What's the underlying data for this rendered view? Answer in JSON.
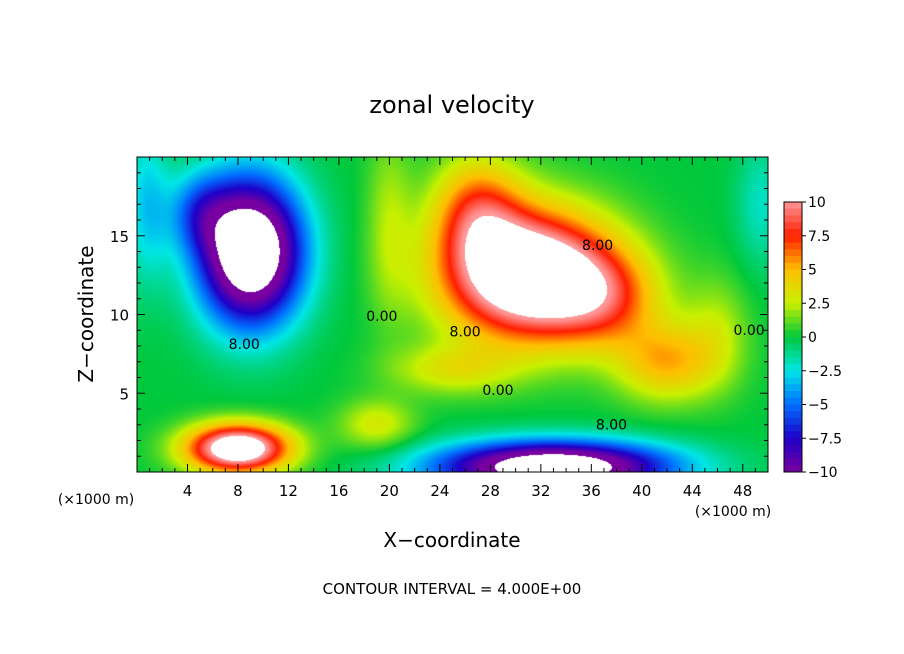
{
  "chart_data": {
    "type": "heatmap",
    "title": "zonal velocity",
    "xlabel": "X−coordinate",
    "ylabel": "Z−coordinate",
    "x_unit_left": "(×1000 m)",
    "x_unit_right": "(×1000 m)",
    "x_range": [
      0,
      50
    ],
    "y_range": [
      0,
      20
    ],
    "x_ticks": [
      4,
      8,
      12,
      16,
      20,
      24,
      28,
      32,
      36,
      40,
      44,
      48
    ],
    "x_tick_labels": [
      "4",
      "8",
      "12",
      "16",
      "20",
      "24",
      "28",
      "32",
      "36",
      "40",
      "44",
      "48"
    ],
    "y_ticks": [
      5,
      10,
      15
    ],
    "y_tick_labels": [
      "5",
      "10",
      "15"
    ],
    "color_range": [
      -10,
      10
    ],
    "colorbar_ticks": [
      10,
      7.5,
      5,
      2.5,
      0,
      -2.5,
      -5,
      -7.5,
      -10
    ],
    "colorbar_tick_labels": [
      "10",
      "7.5",
      "5",
      "2.5",
      "0",
      "−2.5",
      "−5",
      "−7.5",
      "−10"
    ],
    "contour_labels": [
      {
        "text": "8.00",
        "x": 36.5,
        "y": 14.1
      },
      {
        "text": "0.00",
        "x": 19.4,
        "y": 9.6
      },
      {
        "text": "8.00",
        "x": 26.0,
        "y": 8.6
      },
      {
        "text": "8.00",
        "x": 8.5,
        "y": 7.8
      },
      {
        "text": "0.00",
        "x": 48.5,
        "y": 8.7
      },
      {
        "text": "0.00",
        "x": 28.6,
        "y": 4.9
      },
      {
        "text": "8.00",
        "x": 37.6,
        "y": 2.7
      }
    ],
    "footer": "CONTOUR INTERVAL = 4.000E+00",
    "features": [
      {
        "x": 9.0,
        "y": 14.0,
        "sx": 4.0,
        "sy": 4.5,
        "value": -16
      },
      {
        "x": 5.0,
        "y": 16.5,
        "sx": 2.5,
        "sy": 2.5,
        "value": -4
      },
      {
        "x": 31.0,
        "y": 12.5,
        "sx": 6.5,
        "sy": 4.0,
        "value": 15
      },
      {
        "x": 37.0,
        "y": 11.0,
        "sx": 4.5,
        "sy": 3.0,
        "value": 5
      },
      {
        "x": 27.0,
        "y": 16.5,
        "sx": 3.5,
        "sy": 3.5,
        "value": 6
      },
      {
        "x": 42.0,
        "y": 7.0,
        "sx": 4.0,
        "sy": 2.5,
        "value": 5
      },
      {
        "x": 46.0,
        "y": 9.0,
        "sx": 2.5,
        "sy": 3.5,
        "value": 2
      },
      {
        "x": 8.0,
        "y": 1.5,
        "sx": 4.0,
        "sy": 1.5,
        "value": 14
      },
      {
        "x": 33.0,
        "y": 0.3,
        "sx": 9.0,
        "sy": 1.6,
        "value": -15
      },
      {
        "x": 19.0,
        "y": 3.0,
        "sx": 3.0,
        "sy": 1.6,
        "value": 3
      },
      {
        "x": 0.8,
        "y": 17.0,
        "sx": 1.8,
        "sy": 5.0,
        "value": -3
      },
      {
        "x": 49.5,
        "y": 17.0,
        "sx": 2.0,
        "sy": 4.0,
        "value": -2
      },
      {
        "x": 25.0,
        "y": 6.5,
        "sx": 5.0,
        "sy": 1.6,
        "value": 3
      },
      {
        "x": 20.0,
        "y": 16.0,
        "sx": 1.8,
        "sy": 6.0,
        "value": 2
      }
    ],
    "background_value": 0
  }
}
